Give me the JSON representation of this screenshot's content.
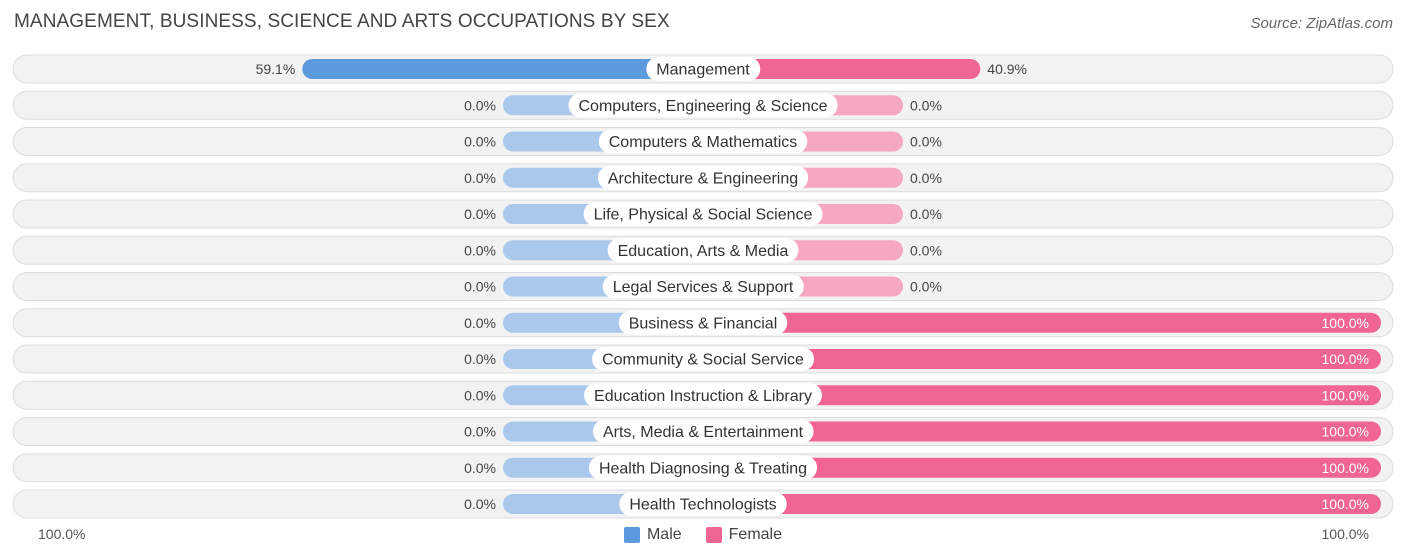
{
  "title": "MANAGEMENT, BUSINESS, SCIENCE AND ARTS OCCUPATIONS BY SEX",
  "source": "Source: ZipAtlas.com",
  "colors": {
    "male": "#5b9bdc",
    "male_light": "#aac8ec",
    "female": "#f06591",
    "female_light": "#f6a8c0",
    "row_bg": "#f2f2f2",
    "row_border": "#dddddd"
  },
  "legend": {
    "male_label": "Male",
    "female_label": "Female"
  },
  "axis": {
    "left_label": "100.0%",
    "right_label": "100.0%"
  },
  "chart_data": {
    "type": "bar",
    "orientation": "diverging-horizontal",
    "categories": [
      "Management",
      "Computers, Engineering & Science",
      "Computers & Mathematics",
      "Architecture & Engineering",
      "Life, Physical & Social Science",
      "Education, Arts & Media",
      "Legal Services & Support",
      "Business & Financial",
      "Community & Social Service",
      "Education Instruction & Library",
      "Arts, Media & Entertainment",
      "Health Diagnosing & Treating",
      "Health Technologists"
    ],
    "series": [
      {
        "name": "Male",
        "values": [
          59.1,
          0.0,
          0.0,
          0.0,
          0.0,
          0.0,
          0.0,
          0.0,
          0.0,
          0.0,
          0.0,
          0.0,
          0.0
        ]
      },
      {
        "name": "Female",
        "values": [
          40.9,
          0.0,
          0.0,
          0.0,
          0.0,
          0.0,
          0.0,
          100.0,
          100.0,
          100.0,
          100.0,
          100.0,
          100.0
        ]
      }
    ],
    "value_labels_male": [
      "59.1%",
      "0.0%",
      "0.0%",
      "0.0%",
      "0.0%",
      "0.0%",
      "0.0%",
      "0.0%",
      "0.0%",
      "0.0%",
      "0.0%",
      "0.0%",
      "0.0%"
    ],
    "value_labels_female": [
      "40.9%",
      "0.0%",
      "0.0%",
      "0.0%",
      "0.0%",
      "0.0%",
      "0.0%",
      "100.0%",
      "100.0%",
      "100.0%",
      "100.0%",
      "100.0%",
      "100.0%"
    ],
    "xlim": [
      -100,
      100
    ],
    "legend_position": "bottom-center"
  }
}
